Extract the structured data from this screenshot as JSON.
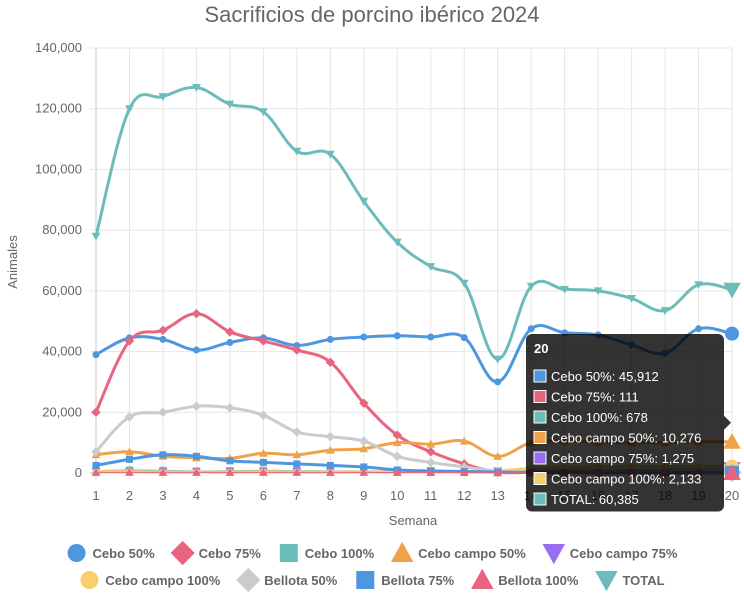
{
  "chart_data": {
    "type": "line",
    "title": "Sacrificios de porcino ibérico 2024",
    "xlabel": "Semana",
    "ylabel": "Animales",
    "ylim": [
      0,
      140000
    ],
    "yticks": [
      "0",
      "20,000",
      "40,000",
      "60,000",
      "80,000",
      "100,000",
      "120,000",
      "140,000"
    ],
    "categories": [
      "1",
      "2",
      "3",
      "4",
      "5",
      "6",
      "7",
      "8",
      "9",
      "10",
      "11",
      "12",
      "13",
      "14",
      "15",
      "16",
      "17",
      "18",
      "19",
      "20"
    ],
    "grid": true,
    "legend_position": "bottom",
    "series": [
      {
        "name": "Cebo 50%",
        "color": "#4e97e0",
        "marker": "circle",
        "line_width": 3,
        "values": [
          39000,
          44500,
          44000,
          40500,
          43000,
          44500,
          42000,
          44000,
          44800,
          45200,
          44800,
          44600,
          30000,
          47500,
          46200,
          45500,
          42200,
          39500,
          47500,
          45912
        ]
      },
      {
        "name": "Cebo 75%",
        "color": "#e8647f",
        "marker": "rectRot",
        "line_width": 3,
        "values": [
          20000,
          43500,
          47000,
          52500,
          46500,
          43500,
          40500,
          36500,
          23000,
          12500,
          7000,
          3000,
          300,
          200,
          150,
          150,
          130,
          120,
          115,
          111
        ]
      },
      {
        "name": "Cebo 100%",
        "color": "#6cbcbc",
        "marker": "rect",
        "line_width": 1,
        "values": [
          800,
          1000,
          900,
          700,
          800,
          900,
          800,
          700,
          700,
          700,
          700,
          700,
          600,
          650,
          650,
          660,
          670,
          670,
          675,
          678
        ]
      },
      {
        "name": "Cebo campo 50%",
        "color": "#f0a24a",
        "marker": "triangle",
        "line_width": 3,
        "values": [
          6000,
          7000,
          5500,
          5000,
          4800,
          6500,
          6000,
          7500,
          8000,
          10000,
          9500,
          10500,
          5500,
          10000,
          10500,
          10200,
          10000,
          10100,
          10300,
          10276
        ]
      },
      {
        "name": "Cebo campo 75%",
        "color": "#9a6ef0",
        "marker": "triangleDown",
        "line_width": 1,
        "values": [
          500,
          400,
          400,
          400,
          400,
          500,
          500,
          600,
          500,
          600,
          700,
          800,
          700,
          900,
          1000,
          1100,
          1200,
          1200,
          1250,
          1275
        ]
      },
      {
        "name": "Cebo campo 100%",
        "color": "#f7cf6b",
        "marker": "circle",
        "line_width": 3,
        "values": [
          500,
          400,
          300,
          300,
          300,
          400,
          300,
          300,
          300,
          300,
          400,
          500,
          700,
          1500,
          1800,
          2000,
          2100,
          2100,
          2120,
          2133
        ]
      },
      {
        "name": "Bellota 50%",
        "color": "#cacbcd",
        "marker": "rectRot",
        "line_width": 3,
        "values": [
          7000,
          18500,
          20000,
          22000,
          21500,
          19000,
          13500,
          12000,
          10500,
          5500,
          3500,
          2000,
          600,
          300,
          200,
          150,
          100,
          80,
          60,
          50
        ]
      },
      {
        "name": "Bellota 75%",
        "color": "#4e97e0",
        "marker": "rect",
        "line_width": 3,
        "values": [
          2500,
          4500,
          6000,
          5500,
          4000,
          3500,
          3000,
          2500,
          2000,
          1000,
          700,
          500,
          300,
          200,
          150,
          100,
          80,
          60,
          50,
          40
        ]
      },
      {
        "name": "Bellota 100%",
        "color": "#e8647f",
        "marker": "triangle",
        "line_width": 1,
        "values": [
          200,
          200,
          200,
          200,
          200,
          200,
          200,
          200,
          200,
          150,
          150,
          150,
          100,
          80,
          60,
          50,
          40,
          30,
          20,
          10
        ]
      },
      {
        "name": "TOTAL",
        "color": "#6cbcbc",
        "marker": "triangleDown",
        "line_width": 3,
        "values": [
          78000,
          120000,
          124000,
          127000,
          121500,
          119000,
          106000,
          105000,
          89500,
          76000,
          68000,
          62500,
          37500,
          61500,
          60500,
          60000,
          57500,
          53500,
          62000,
          60385
        ]
      }
    ],
    "tooltip": {
      "title": "20",
      "lines": [
        {
          "label": "Cebo 50%: 45,912",
          "color": "#4e97e0"
        },
        {
          "label": "Cebo 75%: 111",
          "color": "#e8647f"
        },
        {
          "label": "Cebo 100%: 678",
          "color": "#6cbcbc"
        },
        {
          "label": "Cebo campo 50%: 10,276",
          "color": "#f0a24a"
        },
        {
          "label": "Cebo campo 75%: 1,275",
          "color": "#9a6ef0"
        },
        {
          "label": "Cebo campo 100%: 2,133",
          "color": "#f7cf6b"
        },
        {
          "label": "TOTAL: 60,385",
          "color": "#6cbcbc"
        }
      ]
    }
  }
}
